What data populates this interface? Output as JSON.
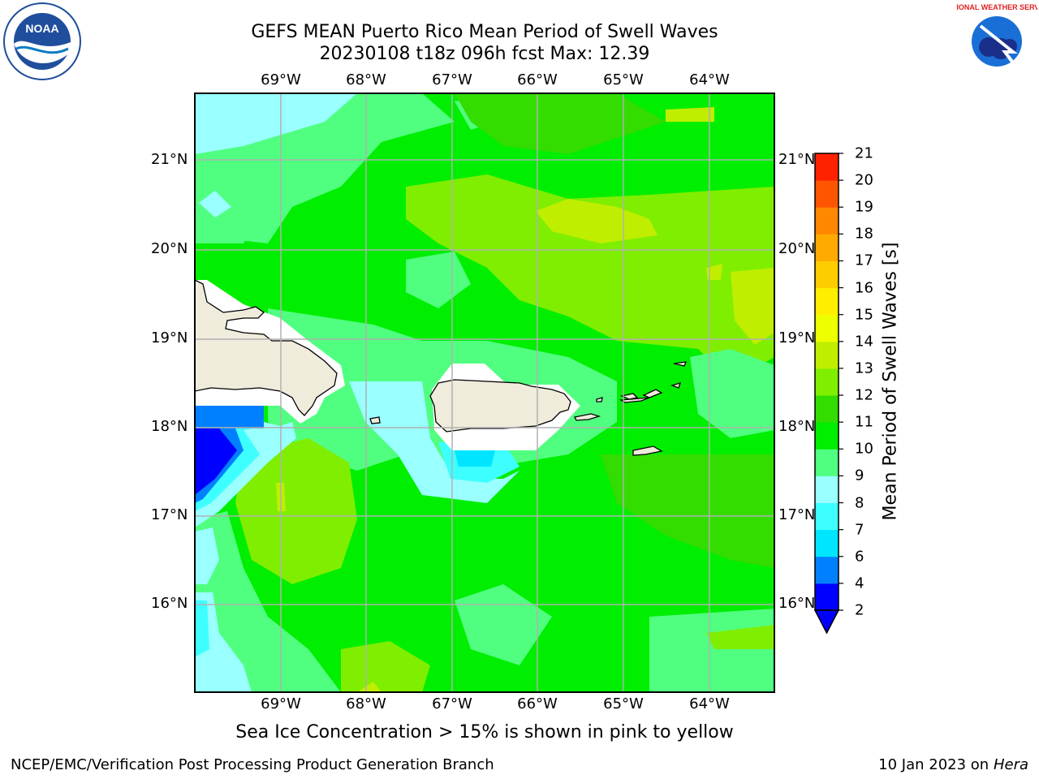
{
  "title_line1": "GEFS MEAN Puerto Rico Mean Period of Swell Waves",
  "title_line2": "20230108 t18z 096h fcst   Max: 12.39",
  "lon_labels": [
    "69°W",
    "68°W",
    "67°W",
    "66°W",
    "65°W",
    "64°W"
  ],
  "lat_labels": [
    "21°N",
    "20°N",
    "19°N",
    "18°N",
    "17°N",
    "16°N"
  ],
  "colorbar": {
    "label": "Mean Period of Swell Waves [s]",
    "ticks": [
      "2",
      "4",
      "6",
      "7",
      "8",
      "9",
      "10",
      "11",
      "12",
      "13",
      "14",
      "15",
      "16",
      "17",
      "18",
      "19",
      "20",
      "21"
    ],
    "colors": [
      "#0000ff",
      "#0080ff",
      "#00e5ff",
      "#3dffff",
      "#9affff",
      "#50ff80",
      "#00ee00",
      "#33dd00",
      "#80ee00",
      "#c0ee00",
      "#eeff00",
      "#ffee00",
      "#ffcc00",
      "#ffaa00",
      "#ff8800",
      "#ff5500",
      "#ff2200"
    ]
  },
  "note": "Sea Ice Concentration > 15% is shown in pink to yellow",
  "footer_left": "NCEP/EMC/Verification Post Processing Product Generation Branch",
  "footer_date": "10 Jan 2023 on",
  "footer_machine": "Hera",
  "logos": {
    "left": "NOAA",
    "right": "NATIONAL WEATHER SERVICE"
  },
  "colors": {
    "land": "#efecdc",
    "grid": "#b0b0b0",
    "base_field": "#00ee00"
  }
}
